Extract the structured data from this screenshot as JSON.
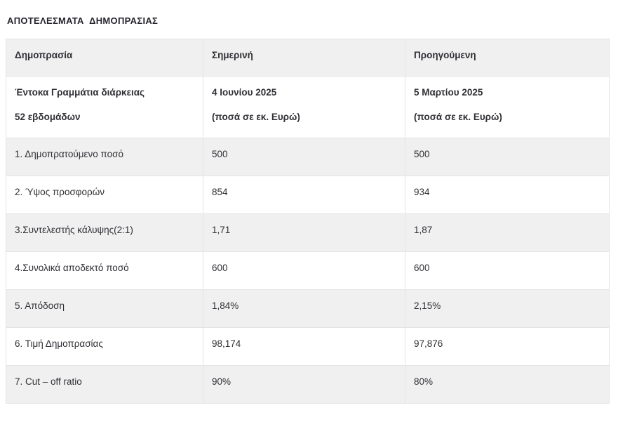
{
  "page": {
    "title": "ΑΠΟΤΕΛΕΣΜΑΤΑ  ΔΗΜΟΠΡΑΣΙΑΣ"
  },
  "table": {
    "columns": [
      "Δημοπρασία",
      "Σημερινή",
      "Προηγούμενη"
    ],
    "subheader": {
      "label_line1": "Έντοκα Γραμμάτια διάρκειας",
      "label_line2": "52 εβδομάδων",
      "current_line1": "4 Ιουνίου 2025",
      "current_line2": "(ποσά σε εκ. Ευρώ)",
      "previous_line1": "5 Μαρτίου 2025",
      "previous_line2": "(ποσά σε εκ. Ευρώ)"
    },
    "rows": [
      {
        "label": "1. Δημοπρατούμενο ποσό",
        "current": "500",
        "previous": "500"
      },
      {
        "label": "2. Ύψος προσφορών",
        "current": "854",
        "previous": "934"
      },
      {
        "label": "3.Συντελεστής κάλυψης(2:1)",
        "current": "1,71",
        "previous": "1,87"
      },
      {
        "label": "4.Συνολικά αποδεκτό ποσό",
        "current": "600",
        "previous": "600"
      },
      {
        "label": "5. Απόδοση",
        "current": "1,84%",
        "previous": "2,15%"
      },
      {
        "label": "6. Τιμή Δημοπρασίας",
        "current": "98,174",
        "previous": "97,876"
      },
      {
        "label": "7. Cut – off ratio",
        "current": "90%",
        "previous": "80%"
      }
    ],
    "colors": {
      "stripe_bg": "#f0f0f0",
      "row_bg": "#ffffff",
      "border": "#e4e4e4",
      "text": "#303036",
      "title_text": "#26262e"
    }
  }
}
